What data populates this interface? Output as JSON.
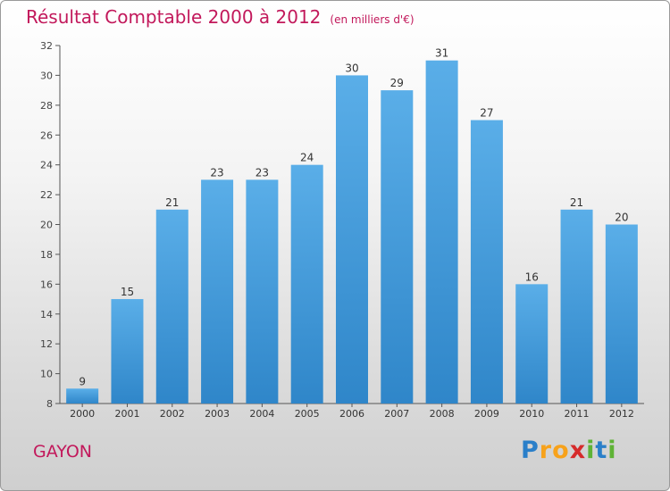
{
  "chart_data": {
    "type": "bar",
    "title": "Résultat Comptable 2000 à 2012",
    "subtitle": "(en milliers d'€)",
    "categories": [
      "2000",
      "2001",
      "2002",
      "2003",
      "2004",
      "2005",
      "2006",
      "2007",
      "2008",
      "2009",
      "2010",
      "2011",
      "2012"
    ],
    "values": [
      9,
      15,
      21,
      23,
      23,
      24,
      30,
      29,
      31,
      27,
      16,
      21,
      20
    ],
    "ylim": [
      8,
      32
    ],
    "yticks": [
      "8",
      "10",
      "12",
      "14",
      "16",
      "18",
      "20",
      "22",
      "24",
      "26",
      "28",
      "30",
      "32"
    ],
    "xlabel": "",
    "ylabel": "",
    "grid": false,
    "bar_color": "#2f86c9",
    "bar_color_light": "#5aaee8"
  },
  "commune": "GAYON",
  "brand": {
    "letters": [
      "P",
      "r",
      "o",
      "x",
      "i",
      "t",
      "i"
    ],
    "colors": [
      "#2a7fc9",
      "#f7a21b",
      "#f7a21b",
      "#d62b2b",
      "#5fb336",
      "#2a7fc9",
      "#5fb336"
    ]
  }
}
